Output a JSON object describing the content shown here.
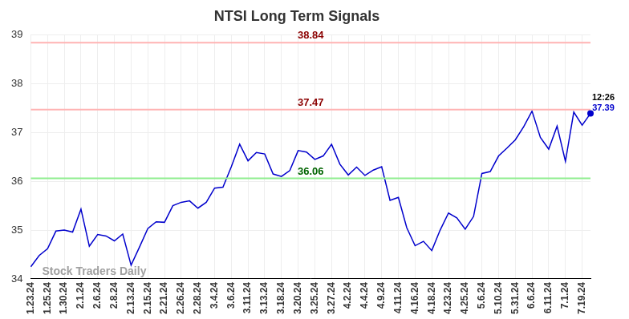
{
  "chart_data": {
    "type": "line",
    "title": "NTSI Long Term Signals",
    "categories": [
      "1.23.24",
      null,
      "1.25.24",
      null,
      "1.30.24",
      null,
      "2.1.24",
      null,
      "2.6.24",
      null,
      "2.8.24",
      null,
      "2.13.24",
      null,
      "2.15.24",
      null,
      "2.21.24",
      null,
      "2.26.24",
      null,
      "2.28.24",
      null,
      "3.4.24",
      null,
      "3.6.24",
      null,
      "3.11.24",
      null,
      "3.13.24",
      null,
      "3.18.24",
      null,
      "3.20.24",
      null,
      "3.25.24",
      null,
      "3.27.24",
      null,
      "4.2.24",
      null,
      "4.4.24",
      null,
      "4.9.24",
      null,
      "4.11.24",
      null,
      "4.16.24",
      null,
      "4.18.24",
      null,
      "4.23.24",
      null,
      "4.25.24",
      null,
      "5.6.24",
      null,
      "5.10.24",
      null,
      "5.31.24",
      null,
      "6.6.24",
      null,
      "6.11.24",
      null,
      "7.1.24",
      null,
      "7.19.24",
      null
    ],
    "values": [
      34.25,
      34.48,
      34.62,
      34.98,
      35.0,
      34.96,
      35.43,
      34.67,
      34.91,
      34.88,
      34.78,
      34.92,
      34.28,
      34.65,
      35.03,
      35.17,
      35.16,
      35.5,
      35.57,
      35.6,
      35.45,
      35.57,
      35.86,
      35.88,
      36.3,
      36.76,
      36.42,
      36.59,
      36.56,
      36.15,
      36.1,
      36.22,
      36.63,
      36.6,
      36.45,
      36.52,
      36.76,
      36.35,
      36.13,
      36.29,
      36.12,
      36.23,
      36.3,
      35.61,
      35.67,
      35.05,
      34.68,
      34.77,
      34.58,
      35.0,
      35.35,
      35.25,
      35.02,
      35.28,
      36.16,
      36.2,
      36.52,
      36.68,
      36.85,
      37.12,
      37.44,
      36.9,
      36.66,
      37.13,
      36.41,
      37.42,
      37.15,
      37.39
    ],
    "color": "#0000cc",
    "ylim": [
      34,
      39
    ],
    "yticks": [
      34,
      35,
      36,
      37,
      38,
      39
    ],
    "grid": true,
    "levels": [
      {
        "value": 38.84,
        "color": "#ffb3b3",
        "label_color": "#8b0000"
      },
      {
        "value": 37.47,
        "color": "#ffb3b3",
        "label_color": "#8b0000"
      },
      {
        "value": 36.06,
        "color": "#90ee90",
        "label_color": "#006400"
      }
    ],
    "last_time": "12:26",
    "watermark": "Stock Traders Daily"
  }
}
